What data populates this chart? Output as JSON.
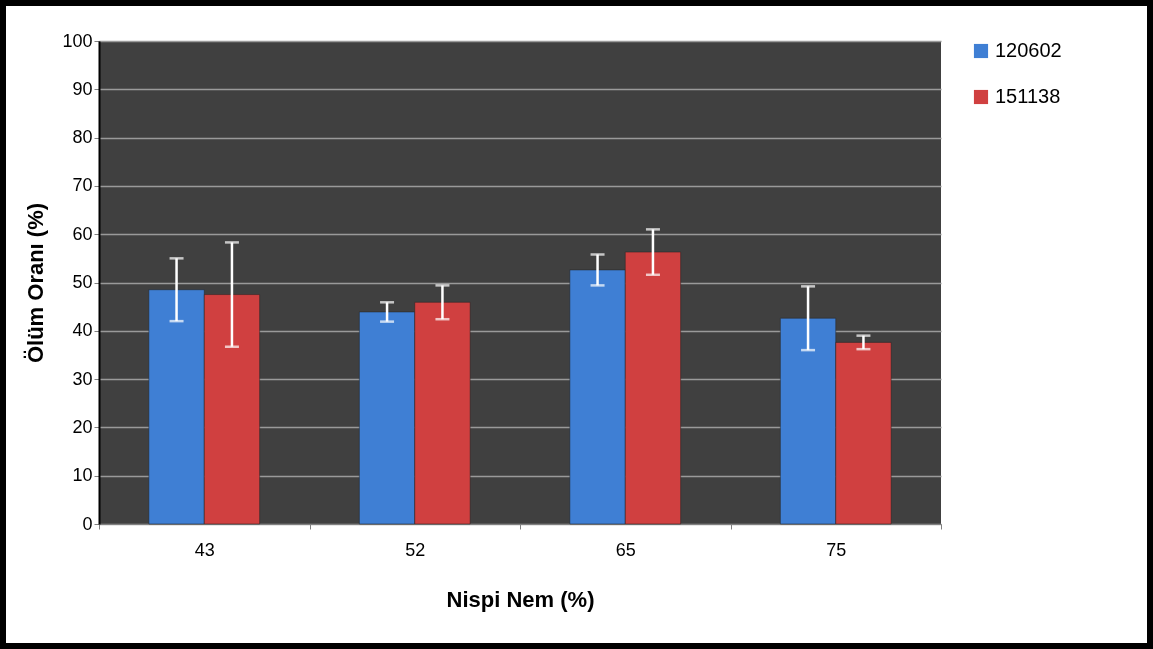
{
  "chart_data": {
    "type": "bar",
    "xlabel": "Nispi Nem (%)",
    "ylabel": "Ölüm Oranı (%)",
    "categories": [
      "43",
      "52",
      "65",
      "75"
    ],
    "series": [
      {
        "name": "120602",
        "color": "#3f7fd4",
        "values": [
          48.5,
          43.9,
          52.6,
          42.6
        ],
        "errors": [
          6.5,
          2.0,
          3.2,
          6.6
        ]
      },
      {
        "name": "151138",
        "color": "#d04040",
        "values": [
          47.5,
          45.9,
          56.3,
          37.6
        ],
        "errors": [
          10.8,
          3.5,
          4.7,
          1.4
        ]
      }
    ],
    "ylim": [
      0,
      100
    ],
    "yticks": [
      0,
      10,
      20,
      30,
      40,
      50,
      60,
      70,
      80,
      90,
      100
    ],
    "grid": "y",
    "legend": "right"
  }
}
